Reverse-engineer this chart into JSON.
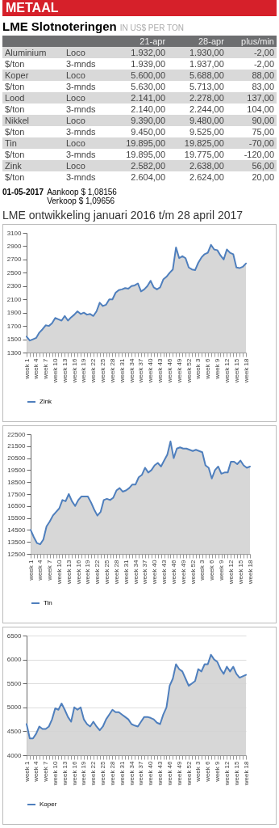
{
  "chart_data": [
    {
      "type": "other",
      "title": "LME Slotnoteringen",
      "subtitle": "IN US$ PER TON",
      "annotations": [
        "METAAL",
        "21-apr",
        "28-apr",
        "plus/min",
        "Aluminium",
        "Loco",
        "1.932,00",
        "1.930,00",
        "-2,00",
        "$/ton",
        "3-mnds",
        "1.939,00",
        "1.937,00",
        "-2,00",
        "Koper",
        "Loco",
        "5.600,00",
        "5.688,00",
        "88,00",
        "$/ton",
        "3-mnds",
        "5.630,00",
        "5.713,00",
        "83,00",
        "Lood",
        "Loco",
        "2.141,00",
        "2.278,00",
        "137,00",
        "$/ton",
        "3-mnds",
        "2.140,00",
        "2.244,00",
        "104,00",
        "Nikkel",
        "Loco",
        "9.390,00",
        "9.480,00",
        "90,00",
        "$/ton",
        "3-mnds",
        "9.450,00",
        "9.525,00",
        "75,00",
        "Tin",
        "Loco",
        "19.895,00",
        "19.825,00",
        "-70,00",
        "$/ton",
        "3-mnds",
        "19.895,00",
        "19.775,00",
        "-120,00",
        "Zink",
        "Loco",
        "2.582,00",
        "2.638,00",
        "56,00",
        "$/ton",
        "3-mnds",
        "2.604,00",
        "2.624,00",
        "20,00",
        "01-05-2017",
        "Aankoop $ 1,08156",
        "Verkoop $ 1,09656"
      ]
    },
    {
      "type": "area",
      "title": "LME ontwikkeling januari 2016 t/m 28 april 2017",
      "legend": "bottom",
      "ylim": [
        1300,
        3100
      ],
      "yticks": [
        1300,
        1500,
        1700,
        1900,
        2100,
        2300,
        2500,
        2700,
        2900,
        3100
      ],
      "categories": [
        "week 1",
        null,
        null,
        "week 4",
        null,
        null,
        "week 7",
        null,
        null,
        "week 10",
        null,
        null,
        "week 13",
        null,
        null,
        "week 16",
        null,
        null,
        "week 19",
        null,
        null,
        "week 22",
        null,
        null,
        "week 25",
        null,
        null,
        "week 28",
        null,
        null,
        "week 31",
        null,
        null,
        "week 34",
        null,
        null,
        "week 37",
        null,
        null,
        "week 40",
        null,
        null,
        "week 43",
        null,
        null,
        "week 46",
        null,
        null,
        "week 49",
        null,
        null,
        "week 52",
        null,
        null,
        "week 3",
        null,
        null,
        "week 6",
        null,
        null,
        "week 9",
        null,
        null,
        "week 12",
        null,
        null,
        "week 15",
        null,
        null,
        "week 18"
      ],
      "series": [
        {
          "name": "Zink",
          "color": "#4f7fbd",
          "values": [
            1540,
            1480,
            1500,
            1520,
            1600,
            1650,
            1710,
            1700,
            1740,
            1820,
            1800,
            1780,
            1850,
            1780,
            1830,
            1870,
            1920,
            1880,
            1900,
            1870,
            1880,
            1850,
            1920,
            2050,
            2000,
            2020,
            2100,
            2100,
            2200,
            2240,
            2250,
            2270,
            2260,
            2300,
            2310,
            2340,
            2220,
            2250,
            2300,
            2380,
            2280,
            2250,
            2280,
            2400,
            2440,
            2500,
            2550,
            2880,
            2720,
            2750,
            2720,
            2580,
            2550,
            2540,
            2650,
            2730,
            2780,
            2800,
            2920,
            2850,
            2840,
            2760,
            2700,
            2850,
            2800,
            2780,
            2580,
            2570,
            2590,
            2640
          ]
        }
      ]
    },
    {
      "type": "area",
      "legend": "bottom",
      "ylim": [
        12500,
        22500
      ],
      "yticks": [
        12500,
        13500,
        14500,
        15500,
        16500,
        17500,
        18500,
        19500,
        20500,
        21500,
        22500
      ],
      "categories": [
        "week 1",
        null,
        null,
        "week 4",
        null,
        null,
        "week 7",
        null,
        null,
        "week 10",
        null,
        null,
        "week 13",
        null,
        null,
        "week 16",
        null,
        null,
        "week 19",
        null,
        null,
        "week 22",
        null,
        null,
        "week 25",
        null,
        null,
        "week 28",
        null,
        null,
        "week 31",
        null,
        null,
        "week 34",
        null,
        null,
        "week 37",
        null,
        null,
        "week 40",
        null,
        null,
        "week 43",
        null,
        null,
        "week 46",
        null,
        null,
        "week 49",
        null,
        null,
        "week 52",
        null,
        null,
        "week 3",
        null,
        null,
        "week 6",
        null,
        null,
        "week 9",
        null,
        null,
        "week 12",
        null,
        null,
        "week 15",
        null,
        null,
        "week 18"
      ],
      "series": [
        {
          "name": "Tin",
          "color": "#4f7fbd",
          "values": [
            14500,
            13900,
            13400,
            13300,
            13700,
            14800,
            15200,
            15700,
            16000,
            16300,
            17000,
            16900,
            17500,
            16900,
            16500,
            17000,
            17300,
            17300,
            17300,
            16800,
            16200,
            15700,
            16000,
            17000,
            17100,
            17000,
            17200,
            17800,
            18000,
            17700,
            17800,
            18000,
            18300,
            18300,
            18900,
            19100,
            19700,
            19300,
            19500,
            19900,
            20100,
            19800,
            20300,
            20800,
            21900,
            20500,
            21300,
            21400,
            21300,
            21300,
            21200,
            21100,
            21200,
            21100,
            21000,
            19900,
            19700,
            18800,
            19500,
            19800,
            19200,
            19300,
            19300,
            20200,
            20200,
            20000,
            20300,
            19900,
            19700,
            19800
          ]
        }
      ]
    },
    {
      "type": "area",
      "legend": "bottom",
      "grid": "y",
      "ylim": [
        4000,
        6500
      ],
      "yticks": [
        4000,
        4500,
        5000,
        5500,
        6000,
        6500
      ],
      "categories": [
        "week 1",
        null,
        null,
        "week 4",
        null,
        null,
        "week 7",
        null,
        null,
        "week 10",
        null,
        null,
        "week 13",
        null,
        null,
        "week 16",
        null,
        null,
        "week 19",
        null,
        null,
        "week 22",
        null,
        null,
        "week 25",
        null,
        null,
        "week 28",
        null,
        null,
        "week 31",
        null,
        null,
        "week 34",
        null,
        null,
        "week 37",
        null,
        null,
        "week 40",
        null,
        null,
        "week 43",
        null,
        null,
        "week 46",
        null,
        null,
        "week 49",
        null,
        null,
        "week 52",
        null,
        null,
        "week 3",
        null,
        null,
        "week 6",
        null,
        null,
        "week 9",
        null,
        null,
        "week 12",
        null,
        null,
        "week 15",
        null,
        null,
        "week 18"
      ],
      "series": [
        {
          "name": "Koper",
          "color": "#4f7fbd",
          "values": [
            4650,
            4350,
            4350,
            4450,
            4600,
            4550,
            4550,
            4600,
            4750,
            4980,
            4950,
            5080,
            4950,
            4800,
            4700,
            5000,
            4950,
            5000,
            4750,
            4650,
            4600,
            4700,
            4600,
            4520,
            4600,
            4750,
            4850,
            4950,
            4900,
            4900,
            4850,
            4800,
            4750,
            4650,
            4620,
            4600,
            4700,
            4800,
            4800,
            4780,
            4750,
            4680,
            4650,
            4850,
            5000,
            5450,
            5600,
            5900,
            5800,
            5750,
            5600,
            5450,
            5500,
            5550,
            5800,
            5750,
            5900,
            5900,
            6100,
            6000,
            5950,
            5800,
            5700,
            5850,
            5750,
            5850,
            5700,
            5620,
            5650,
            5680
          ]
        }
      ]
    }
  ]
}
